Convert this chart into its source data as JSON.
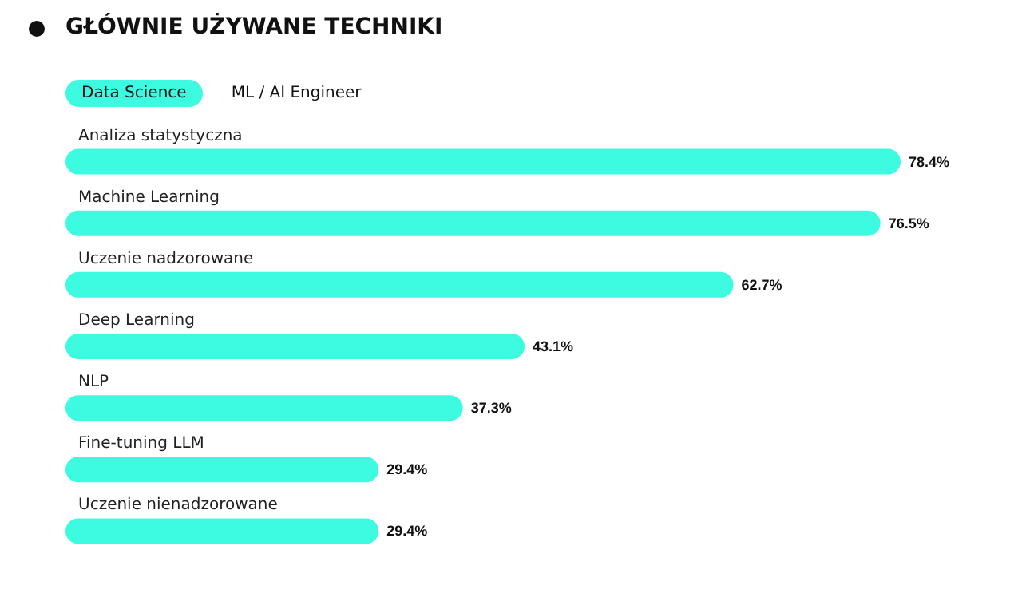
{
  "chart_data": {
    "type": "bar",
    "orientation": "horizontal",
    "title": "GŁÓWNIE UŻYWANE TECHNIKI",
    "annotations": [
      "Data Science",
      "ML / AI Engineer"
    ],
    "categories": [
      "Analiza statystyczna",
      "Machine Learning",
      "Uczenie nadzorowane",
      "Deep Learning",
      "NLP",
      "Fine-tuning LLM",
      "Uczenie nienadzorowane"
    ],
    "values": [
      78.4,
      76.5,
      62.7,
      43.1,
      37.3,
      29.4,
      29.4
    ],
    "value_labels": [
      "78.4%",
      "76.5%",
      "62.7%",
      "43.1%",
      "37.3%",
      "29.4%",
      "29.4%"
    ],
    "color": "#3dfbe0"
  }
}
